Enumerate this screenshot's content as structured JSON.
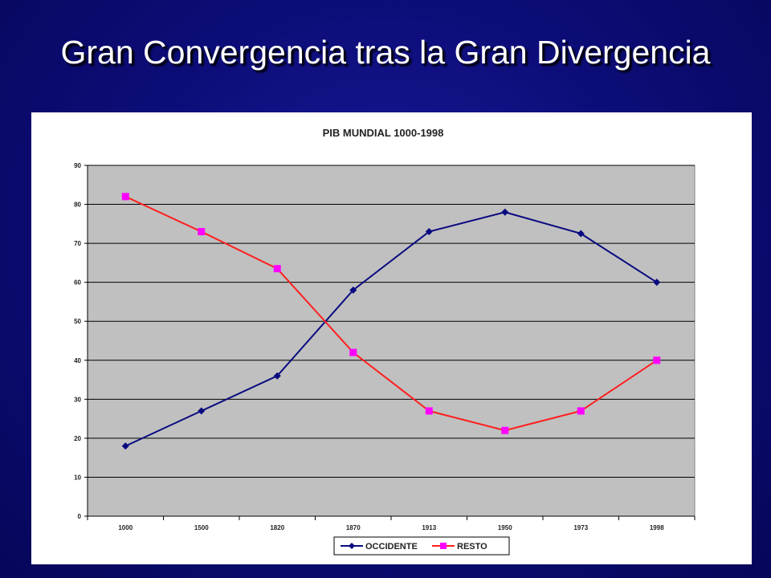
{
  "slide": {
    "title": "Gran Convergencia tras la Gran Divergencia",
    "background_color": "#0d0d7a"
  },
  "chart_data": {
    "type": "line",
    "title": "PIB MUNDIAL 1000-1998",
    "xlabel": "",
    "ylabel": "",
    "categories": [
      "1000",
      "1500",
      "1820",
      "1870",
      "1913",
      "1950",
      "1973",
      "1998"
    ],
    "ylim": [
      0,
      90
    ],
    "yticks": [
      "0",
      "10",
      "20",
      "30",
      "40",
      "50",
      "60",
      "70",
      "80",
      "90"
    ],
    "grid": true,
    "plot_background": "#c0c0c0",
    "legend_position": "bottom",
    "series": [
      {
        "name": "OCCIDENTE",
        "color": "#0a0a80",
        "marker": "diamond",
        "values": [
          18,
          27,
          36,
          58,
          73,
          78,
          72.5,
          60
        ]
      },
      {
        "name": "RESTO",
        "color": "#ff2020",
        "marker_color": "#ff00ff",
        "marker": "square",
        "values": [
          82,
          73,
          63.5,
          42,
          27,
          22,
          27,
          40
        ]
      }
    ]
  }
}
